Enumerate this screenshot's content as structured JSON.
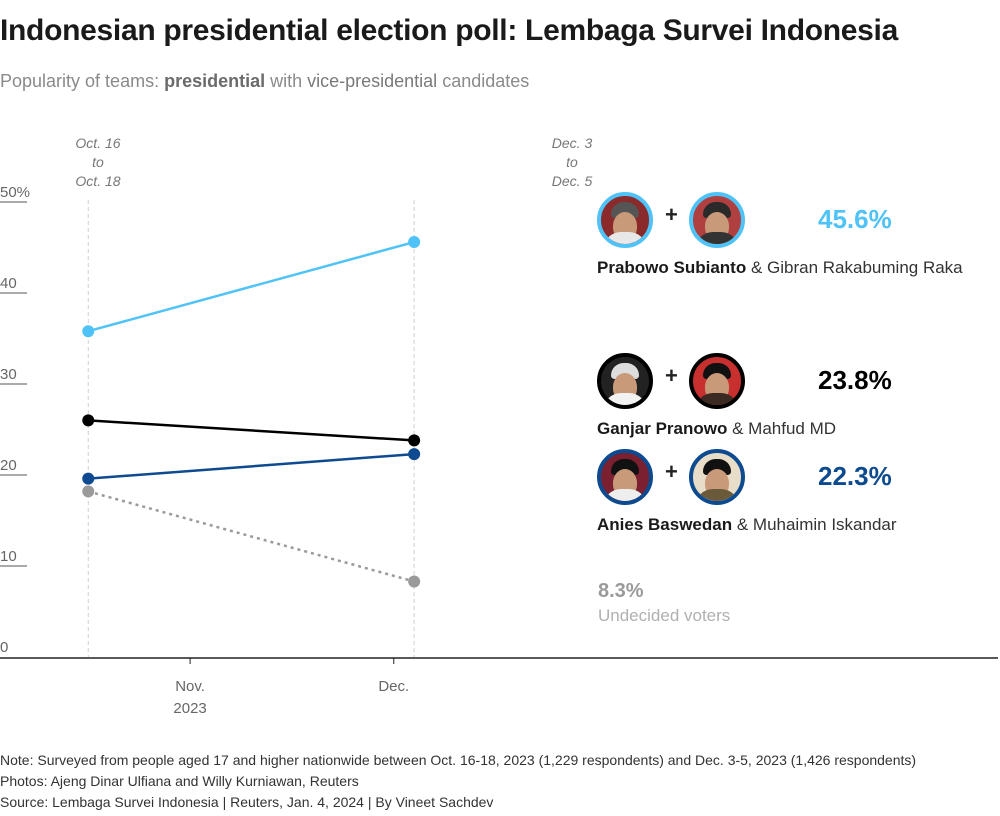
{
  "header": {
    "title": "Indonesian presidential election poll: Lembaga Survei Indonesia",
    "subtitle_prefix": "Popularity of teams: ",
    "subtitle_bold": "presidential",
    "subtitle_middle": " with ",
    "subtitle_vp": "vice-presidential",
    "subtitle_suffix": " candidates"
  },
  "periods": [
    {
      "line1": "Oct. 16",
      "line2": "to",
      "line3": "Oct. 18"
    },
    {
      "line1": "Dec. 3",
      "line2": "to",
      "line3": "Dec. 5"
    }
  ],
  "teams": [
    {
      "president": "Prabowo Subianto",
      "connector": " & ",
      "vice_president": "Gibran Rakabuming Raka",
      "value_label": "45.6%",
      "color": "#4fc3f7",
      "plus": "+"
    },
    {
      "president": "Ganjar Pranowo",
      "connector": " & ",
      "vice_president": "Mahfud MD",
      "value_label": "23.8%",
      "color": "#000000",
      "plus": "+"
    },
    {
      "president": "Anies Baswedan",
      "connector": " & ",
      "vice_president": "Muhaimin Iskandar",
      "value_label": "22.3%",
      "color": "#0d4a8f",
      "plus": "+"
    }
  ],
  "undecided": {
    "value_label": "8.3%",
    "label": "Undecided voters",
    "color": "#9a9a9a"
  },
  "chart_data": {
    "type": "line",
    "title": "Indonesian presidential election poll: Lembaga Survei Indonesia",
    "subtitle": "Popularity of teams: presidential with vice-presidential candidates",
    "x": [
      "Oct. 16 to Oct. 18",
      "Dec. 3 to Dec. 5"
    ],
    "x_dates": [
      "2023-10-17",
      "2023-12-04"
    ],
    "x_ticks": [
      {
        "label": "Nov.",
        "sublabel": "2023",
        "date": "2023-11-01"
      },
      {
        "label": "Dec.",
        "sublabel": "",
        "date": "2023-12-01"
      }
    ],
    "xlim_dates": [
      "2023-10-04",
      "2024-02-28"
    ],
    "ylabel": "",
    "ylim": [
      0,
      50
    ],
    "y_ticks": [
      "0",
      "10",
      "20",
      "30",
      "40",
      "50%"
    ],
    "y_tick_values": [
      0,
      10,
      20,
      30,
      40,
      50
    ],
    "grid": false,
    "series": [
      {
        "name": "Prabowo Subianto & Gibran Rakabuming Raka",
        "values": [
          35.8,
          45.6
        ],
        "color": "#4fc3f7",
        "dash": "solid"
      },
      {
        "name": "Ganjar Pranowo & Mahfud MD",
        "values": [
          26.0,
          23.8
        ],
        "color": "#000000",
        "dash": "solid"
      },
      {
        "name": "Anies Baswedan & Muhaimin Iskandar",
        "values": [
          19.6,
          22.3
        ],
        "color": "#0d4a8f",
        "dash": "solid"
      },
      {
        "name": "Undecided voters",
        "values": [
          18.2,
          8.3
        ],
        "color": "#9a9a9a",
        "dash": "dotted"
      }
    ]
  },
  "footer": {
    "note": "Note: Surveyed from people aged 17 and higher nationwide between Oct. 16-18, 2023 (1,229 respondents) and Dec. 3-5, 2023 (1,426 respondents)",
    "photos": "Photos: Ajeng Dinar Ulfiana and Willy Kurniawan, Reuters",
    "source": "Source: Lembaga Survei Indonesia | Reuters, Jan. 4, 2024 | By Vineet Sachdev"
  }
}
